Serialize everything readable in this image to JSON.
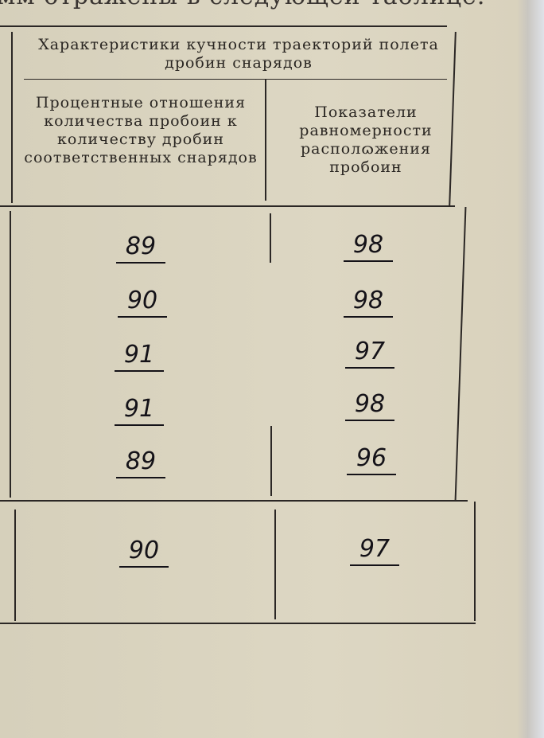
{
  "caption_fragment": "мм отражены в следующей таблице.",
  "table": {
    "group_header": "Характеристики кучности траекторий полета дробин снарядов",
    "columns": [
      "Процентные отношения количества пробоин к количеству дробин соответственных снарядов",
      "Показатели равномерности располɷжения пробоин"
    ],
    "rows": [
      {
        "percent": "89",
        "uniformity": "98"
      },
      {
        "percent": "90",
        "uniformity": "98"
      },
      {
        "percent": "91",
        "uniformity": "97"
      },
      {
        "percent": "91",
        "uniformity": "98"
      },
      {
        "percent": "89",
        "uniformity": "96"
      }
    ],
    "total": {
      "percent": "90",
      "uniformity": "97"
    }
  }
}
